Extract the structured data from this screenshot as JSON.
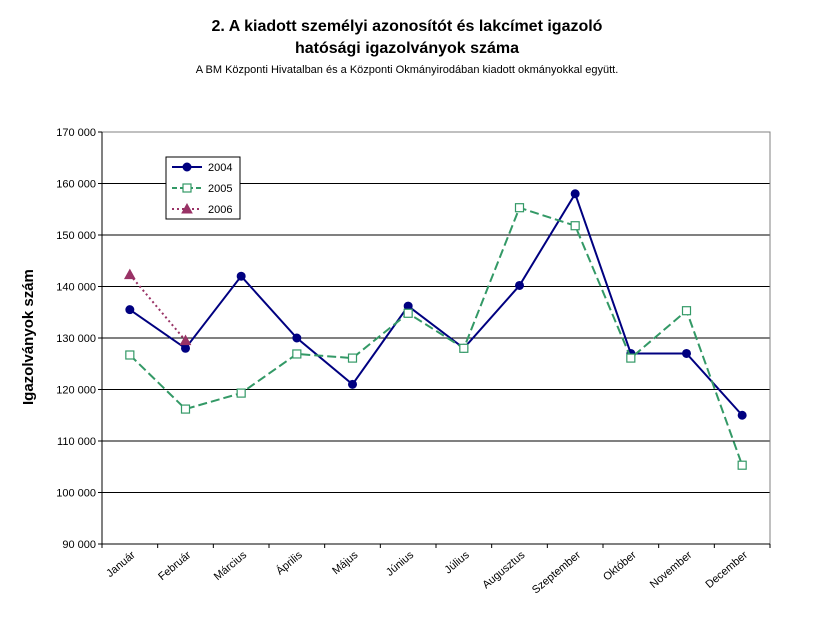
{
  "title_line1": "2. A kiadott személyi azonosítót és lakcímet igazoló",
  "title_line2": "hatósági igazolványok száma",
  "subtitle": "A BM Központi Hivatalban és a Központi Okmányirodában kiadott okmányokkal együtt.",
  "chart_data": {
    "type": "line",
    "ylabel": "Igazolványok szám",
    "categories": [
      "Január",
      "Február",
      "Március",
      "Április",
      "Május",
      "Június",
      "Július",
      "Augusztus",
      "Szeptember",
      "Október",
      "November",
      "December"
    ],
    "ylim": [
      90000,
      170000
    ],
    "yticks": [
      90000,
      100000,
      110000,
      120000,
      130000,
      140000,
      150000,
      160000,
      170000
    ],
    "ytick_labels": [
      "90 000",
      "100 000",
      "110 000",
      "120 000",
      "130 000",
      "140 000",
      "150 000",
      "160 000",
      "170 000"
    ],
    "grid": true,
    "legend_position": "top-left",
    "series": [
      {
        "name": "2004",
        "color": "#000080",
        "style": "solid",
        "marker": "filled-circle",
        "values": [
          135500,
          128000,
          142000,
          130000,
          121000,
          136200,
          128000,
          140200,
          158000,
          127000,
          127000,
          115000
        ]
      },
      {
        "name": "2005",
        "color": "#339966",
        "style": "dashed",
        "marker": "hollow-square",
        "values": [
          126700,
          116200,
          119300,
          126900,
          126100,
          134800,
          128000,
          155300,
          151800,
          126100,
          135300,
          105300
        ]
      },
      {
        "name": "2006",
        "color": "#993366",
        "style": "dotted",
        "marker": "filled-triangle",
        "values": [
          142300,
          129500,
          null,
          null,
          null,
          null,
          null,
          null,
          null,
          null,
          null,
          null
        ]
      }
    ]
  }
}
